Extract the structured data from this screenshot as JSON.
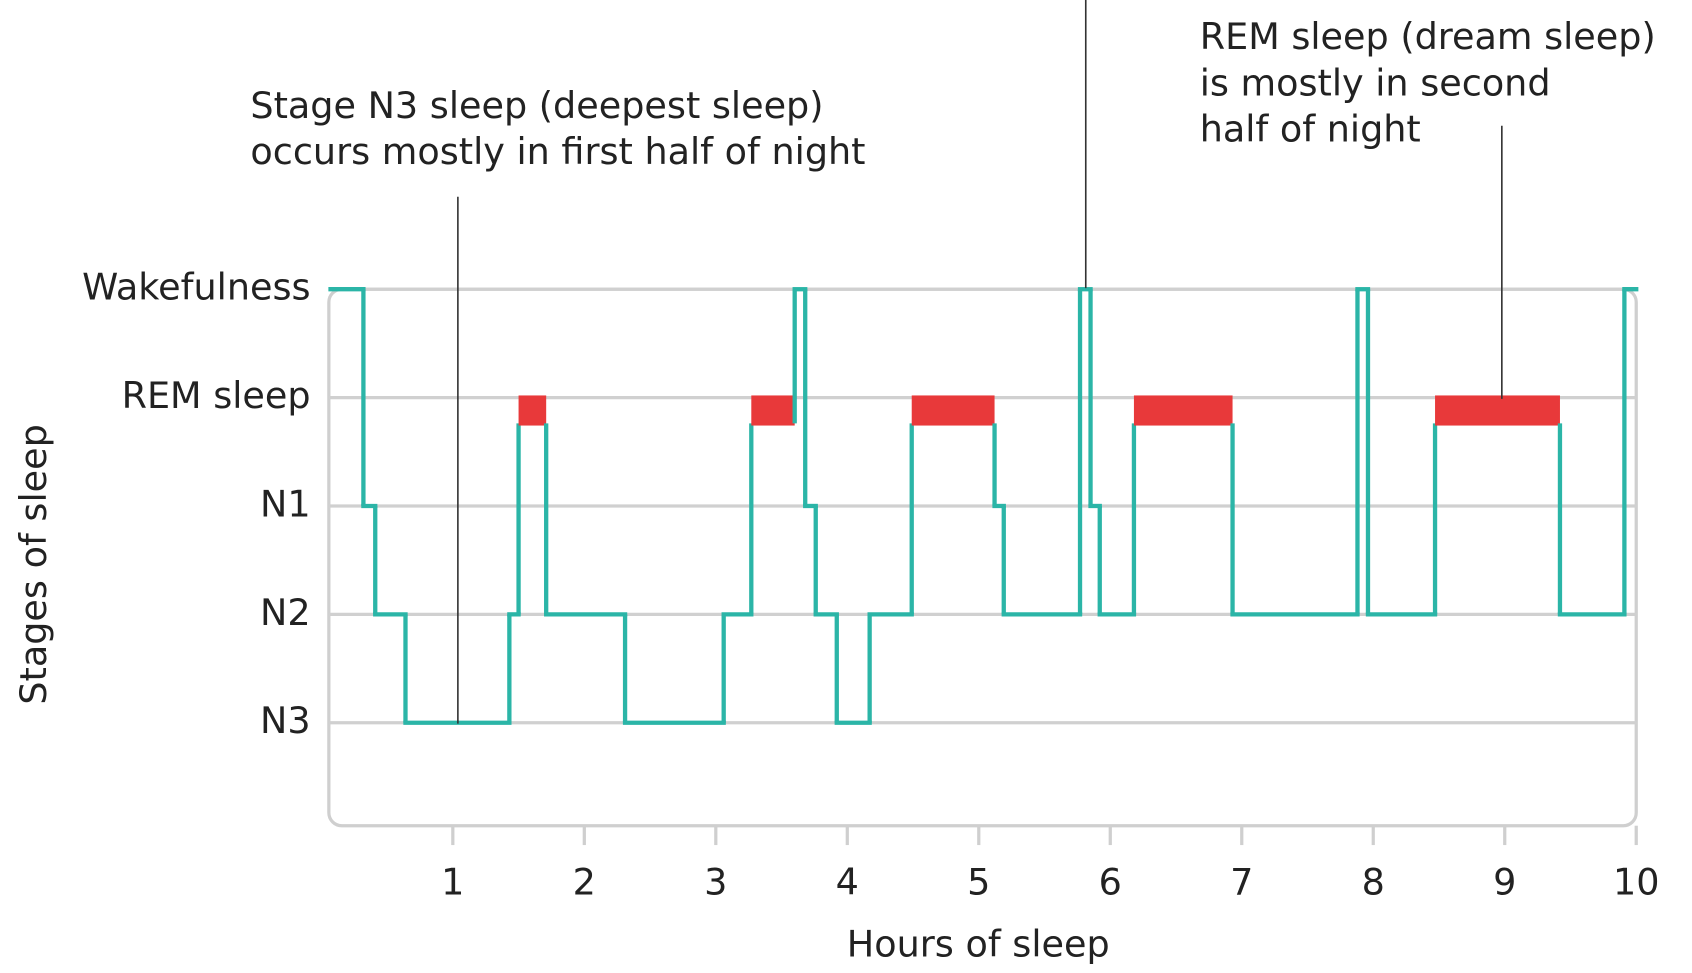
{
  "chart_data": {
    "type": "step",
    "xlabel": "Hours of sleep",
    "ylabel": "Stages of sleep",
    "xlim": [
      0,
      10
    ],
    "xticks": [
      1,
      2,
      3,
      4,
      5,
      6,
      7,
      8,
      9,
      10
    ],
    "ylim": [
      -0.95,
      4
    ],
    "yticks": [
      {
        "value": 4,
        "label": "Wakefulness"
      },
      {
        "value": 3,
        "label": "REM sleep"
      },
      {
        "value": 2,
        "label": "N1"
      },
      {
        "value": 1,
        "label": "N2"
      },
      {
        "value": 0,
        "label": "N3"
      }
    ],
    "grid": true,
    "color": "#2bb5a7",
    "highlight": {
      "value": 3,
      "color": "#e8393a"
    },
    "x": [
      0.07,
      0.32,
      0.41,
      0.64,
      1.43,
      1.5,
      1.71,
      2.31,
      3.06,
      3.27,
      3.6,
      3.68,
      3.76,
      3.92,
      4.17,
      4.49,
      5.12,
      5.19,
      5.77,
      5.85,
      5.92,
      6.18,
      6.93,
      7.88,
      7.96,
      8.47,
      9.42,
      9.91
    ],
    "x_end": [
      0.32,
      0.41,
      0.64,
      1.43,
      1.5,
      1.71,
      2.31,
      3.06,
      3.27,
      3.6,
      3.68,
      3.76,
      3.92,
      4.17,
      4.49,
      5.12,
      5.19,
      5.77,
      5.85,
      5.92,
      6.18,
      6.93,
      7.88,
      7.96,
      8.47,
      9.42,
      9.91,
      10.0
    ],
    "values": [
      4,
      2,
      1,
      0,
      1,
      3,
      1,
      0,
      1,
      3,
      4,
      2,
      1,
      0,
      1,
      3,
      2,
      1,
      4,
      2,
      1,
      3,
      1,
      4,
      1,
      3,
      1,
      4
    ],
    "annotations": [
      {
        "lines": [
          "Stage N3 sleep (deepest sleep)",
          "occurs mostly in first half of night"
        ]
      },
      {
        "lines": [
          "REM sleep (dream sleep)",
          "is mostly in second",
          "half of night"
        ]
      }
    ]
  }
}
